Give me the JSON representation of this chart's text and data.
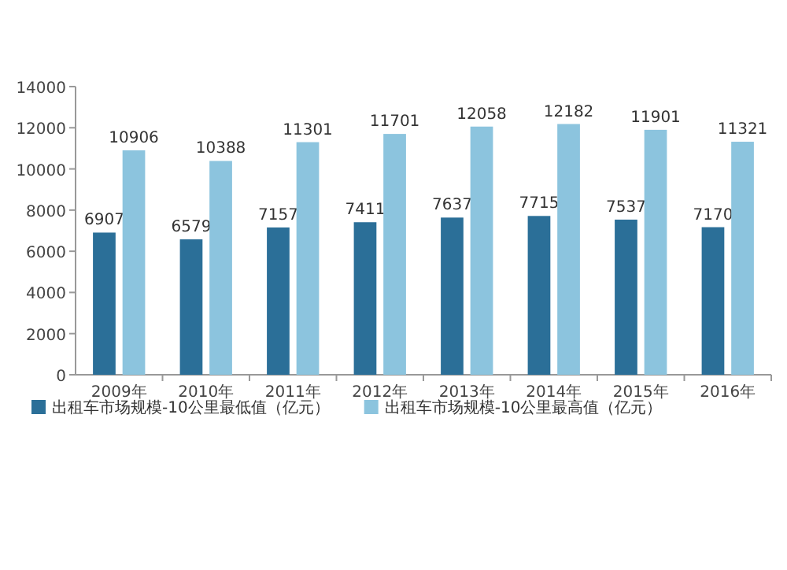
{
  "chart_data": {
    "type": "bar",
    "categories": [
      "2009年",
      "2010年",
      "2011年",
      "2012年",
      "2013年",
      "2014年",
      "2015年",
      "2016年"
    ],
    "series": [
      {
        "name": "出租车市场规模-10公里最低值（亿元）",
        "color": "#2b6f98",
        "values": [
          6907,
          6579,
          7157,
          7411,
          7637,
          7715,
          7537,
          7170
        ]
      },
      {
        "name": "出租车市场规模-10公里最高值（亿元）",
        "color": "#8cc4de",
        "values": [
          10906,
          10388,
          11301,
          11701,
          12058,
          12182,
          11901,
          11321
        ]
      }
    ],
    "ylim": [
      0,
      14000
    ],
    "yticks": [
      0,
      2000,
      4000,
      6000,
      8000,
      10000,
      12000,
      14000
    ],
    "data_labels": true,
    "legend": "bottom"
  }
}
